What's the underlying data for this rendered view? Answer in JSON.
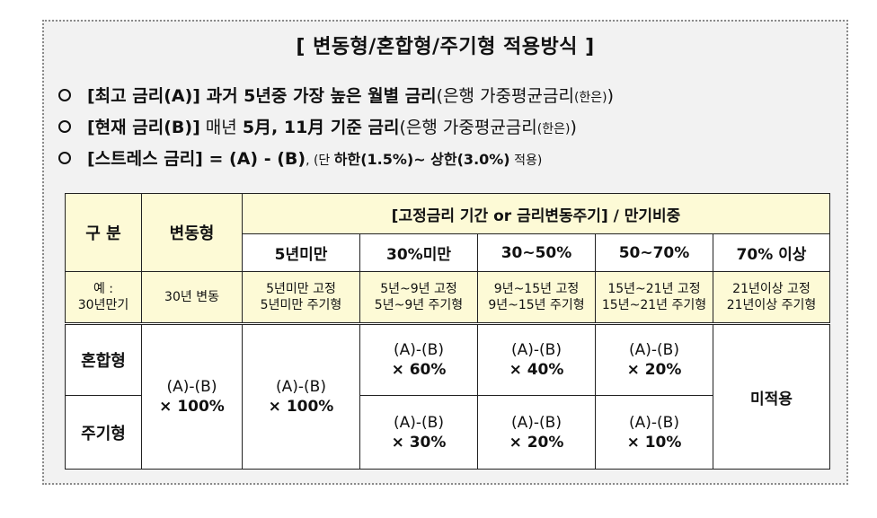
{
  "title": "[ 변동형/혼합형/주기형 적용방식 ]",
  "bullets": [
    {
      "bold": "[최고 금리(A)]",
      "bold2": " 과거 5년중 가장 높은 월별 금리",
      "normal": "(은행 가중평균금리",
      "small": "(한은)",
      "tail": ")"
    },
    {
      "bold": "[현재 금리(B)]",
      "normal1": " 매년 ",
      "bold2": "5月, 11月 기준 금리",
      "normal": "(은행 가중평균금리",
      "small": "(한은)",
      "tail": ")"
    },
    {
      "bold": "[스트레스 금리]",
      "bold2": " = (A) - (B)",
      "normal1": ", (단 ",
      "bold3": "하한(1.5%)~ 상한(3.0%)",
      "normal2": " 적용)"
    }
  ],
  "table": {
    "col_gubun": "구 분",
    "col_variable": "변동형",
    "col_group": "[고정금리 기간 or 금리변동주기] / 만기비중",
    "subcols": [
      "5년미만",
      "30%미만",
      "30~50%",
      "50~70%",
      "70% 이상"
    ],
    "example_row": {
      "label_1": "예 :",
      "label_2": "30년만기",
      "variable": "30년 변동",
      "cells": [
        [
          "5년미만 고정",
          "5년미만 주기형"
        ],
        [
          "5년~9년 고정",
          "5년~9년 주기형"
        ],
        [
          "9년~15년 고정",
          "9년~15년 주기형"
        ],
        [
          "15년~21년 고정",
          "15년~21년 주기형"
        ],
        [
          "21년이상 고정",
          "21년이상 주기형"
        ]
      ]
    },
    "rows": {
      "mixed_label": "혼합형",
      "periodic_label": "주기형",
      "merged_formula": "(A)-(B)",
      "variable_factor": "× 100%",
      "lt5_factor": "×  100%",
      "mixed_cells": [
        {
          "formula": "(A)-(B)",
          "factor": "×  60%"
        },
        {
          "formula": "(A)-(B)",
          "factor": "×  40%"
        },
        {
          "formula": "(A)-(B)",
          "factor": "×  20%"
        }
      ],
      "periodic_cells": [
        {
          "formula": "(A)-(B)",
          "factor": "×  30%"
        },
        {
          "formula": "(A)-(B)",
          "factor": "×  20%"
        },
        {
          "formula": "(A)-(B)",
          "factor": "×  10%"
        }
      ],
      "not_applied": "미적용"
    }
  }
}
